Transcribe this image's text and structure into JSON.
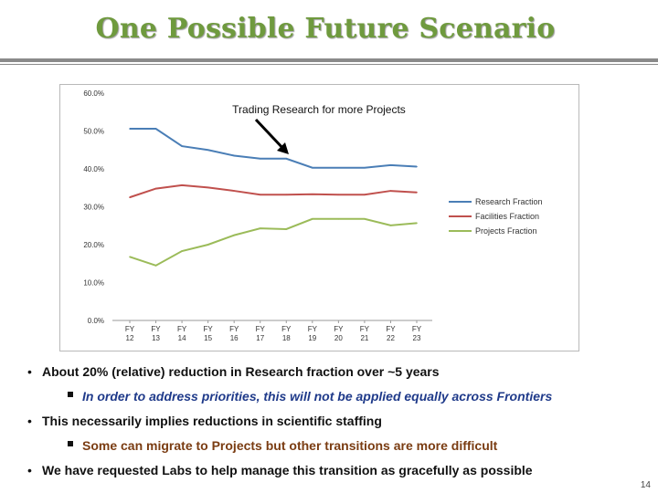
{
  "slide": {
    "title": "One Possible Future Scenario",
    "page_number": "14"
  },
  "bullets": [
    {
      "level": 1,
      "text": "About 20% (relative) reduction in Research fraction over ~5 years"
    },
    {
      "level": 2,
      "text": "In order to address priorities, this will not be applied equally across Frontiers"
    },
    {
      "level": 1,
      "text": "This necessarily implies reductions in scientific staffing"
    },
    {
      "level": 2,
      "text": "Some can migrate to Projects but other transitions are more difficult"
    },
    {
      "level": 1,
      "text": "We have requested Labs to help manage this transition as gracefully as possible"
    }
  ],
  "chart_data": {
    "type": "line",
    "title": "",
    "xlabel": "",
    "ylabel": "",
    "ylim": [
      0,
      60
    ],
    "y_ticks": [
      "0.0%",
      "10.0%",
      "20.0%",
      "30.0%",
      "40.0%",
      "50.0%",
      "60.0%"
    ],
    "categories": [
      [
        "FY",
        "12"
      ],
      [
        "FY",
        "13"
      ],
      [
        "FY",
        "14"
      ],
      [
        "FY",
        "15"
      ],
      [
        "FY",
        "16"
      ],
      [
        "FY",
        "17"
      ],
      [
        "FY",
        "18"
      ],
      [
        "FY",
        "19"
      ],
      [
        "FY",
        "20"
      ],
      [
        "FY",
        "21"
      ],
      [
        "FY",
        "22"
      ],
      [
        "FY",
        "23"
      ]
    ],
    "series": [
      {
        "name": "Research Fraction",
        "color": "#4a7eb6",
        "values": [
          50.6,
          50.6,
          46.0,
          45.0,
          43.5,
          42.7,
          42.7,
          40.3,
          40.3,
          40.3,
          41.0,
          40.6
        ]
      },
      {
        "name": "Facilities Fraction",
        "color": "#c0504d",
        "values": [
          32.5,
          34.8,
          35.7,
          35.1,
          34.2,
          33.2,
          33.2,
          33.3,
          33.2,
          33.2,
          34.2,
          33.8
        ]
      },
      {
        "name": "Projects Fraction",
        "color": "#9bbb59",
        "values": [
          16.8,
          14.5,
          18.3,
          20.0,
          22.5,
          24.3,
          24.1,
          26.8,
          26.8,
          26.8,
          25.1,
          25.7
        ]
      }
    ],
    "legend_position": "right",
    "annotation": "Trading Research for more Projects"
  }
}
